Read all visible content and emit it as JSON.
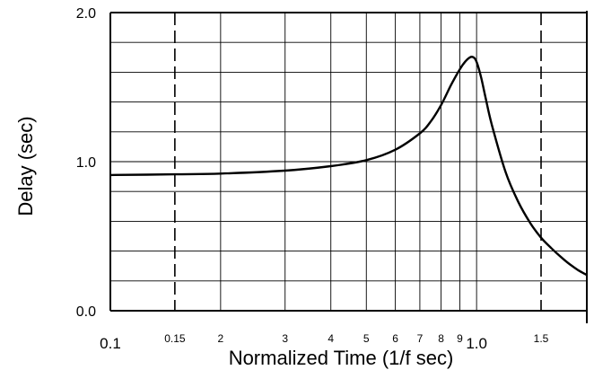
{
  "chart_data": {
    "type": "line",
    "title": "",
    "xlabel": "Normalized Time (1/f sec)",
    "ylabel": "Delay (sec)",
    "x_scale": "log",
    "xlim": [
      0.1,
      2.0
    ],
    "ylim": [
      0.0,
      2.0
    ],
    "grid": true,
    "legend": "none",
    "x_ticks": [
      {
        "value": 0.1,
        "label": "0.1",
        "size": "large"
      },
      {
        "value": 0.15,
        "label": "0.15",
        "size": "small"
      },
      {
        "value": 0.2,
        "label": "2",
        "size": "small"
      },
      {
        "value": 0.3,
        "label": "3",
        "size": "small"
      },
      {
        "value": 0.4,
        "label": "4",
        "size": "small"
      },
      {
        "value": 0.5,
        "label": "5",
        "size": "small"
      },
      {
        "value": 0.6,
        "label": "6",
        "size": "small"
      },
      {
        "value": 0.7,
        "label": "7",
        "size": "small"
      },
      {
        "value": 0.8,
        "label": "8",
        "size": "small"
      },
      {
        "value": 0.9,
        "label": "9",
        "size": "small"
      },
      {
        "value": 1.0,
        "label": "1.0",
        "size": "large"
      },
      {
        "value": 1.5,
        "label": "1.5",
        "size": "small"
      }
    ],
    "x_dashed_lines": [
      0.15,
      1.5
    ],
    "x_grid_lines": [
      0.2,
      0.3,
      0.4,
      0.5,
      0.6,
      0.7,
      0.8,
      0.9,
      1.0
    ],
    "y_ticks": [
      {
        "value": 0.0,
        "label": "0.0"
      },
      {
        "value": 1.0,
        "label": "1.0"
      },
      {
        "value": 2.0,
        "label": "2.0"
      }
    ],
    "y_grid_step": 0.2,
    "series": [
      {
        "color": "#000000",
        "x": [
          0.1,
          0.15,
          0.2,
          0.3,
          0.4,
          0.5,
          0.6,
          0.7,
          0.75,
          0.8,
          0.85,
          0.9,
          0.93,
          0.96,
          0.98,
          1.0,
          1.03,
          1.06,
          1.1,
          1.2,
          1.3,
          1.4,
          1.5,
          1.6,
          1.7,
          1.8,
          1.9,
          2.0
        ],
        "y": [
          0.91,
          0.915,
          0.92,
          0.94,
          0.97,
          1.01,
          1.08,
          1.19,
          1.27,
          1.38,
          1.51,
          1.62,
          1.67,
          1.7,
          1.7,
          1.67,
          1.56,
          1.42,
          1.25,
          0.93,
          0.73,
          0.59,
          0.49,
          0.42,
          0.36,
          0.31,
          0.27,
          0.24
        ]
      }
    ]
  }
}
